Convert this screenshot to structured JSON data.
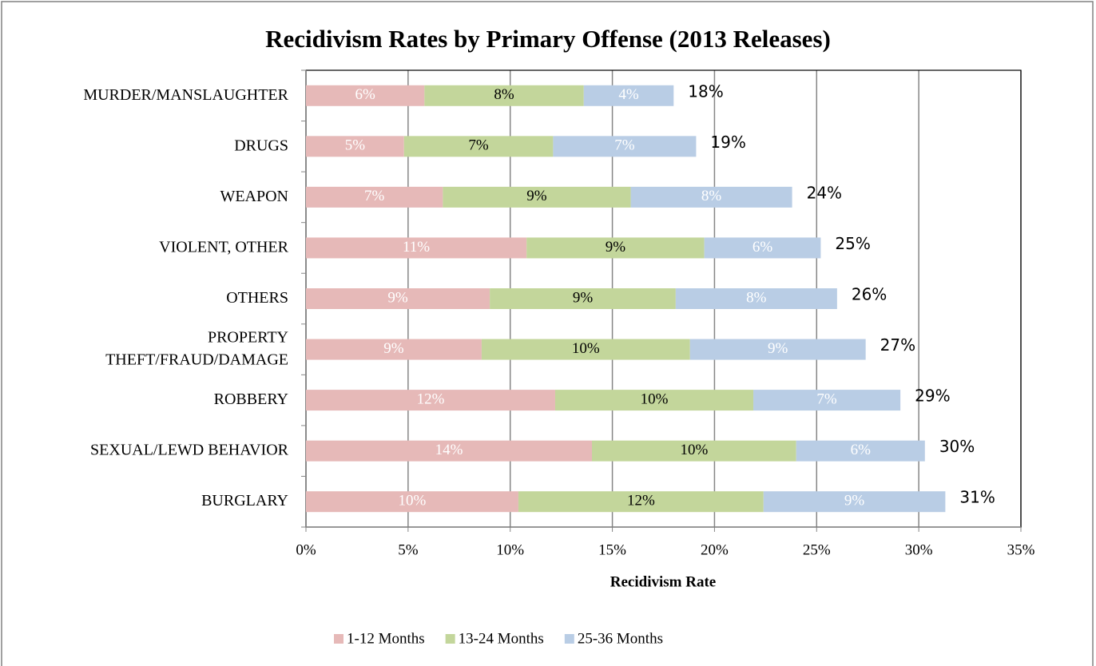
{
  "chart_data": {
    "type": "stacked_barh",
    "title": "Recidivism Rates by Primary Offense (2013 Releases)",
    "x_label": "Recidivism Rate",
    "categories": [
      "MURDER/MANSLAUGHTER",
      "DRUGS",
      "WEAPON",
      "VIOLENT, OTHER",
      "OTHERS",
      "PROPERTY\nTHEFT/FRAUD/DAMAGE",
      "ROBBERY",
      "SEXUAL/LEWD BEHAVIOR",
      "BURGLARY"
    ],
    "series": [
      {
        "name": "1-12 Months",
        "color": "#e6b9b8",
        "label_color": "#ffffff",
        "values": [
          5.8,
          4.8,
          6.7,
          10.8,
          9.0,
          8.6,
          12.2,
          14.0,
          10.4
        ],
        "value_labels": [
          "6%",
          "5%",
          "7%",
          "11%",
          "9%",
          "9%",
          "12%",
          "14%",
          "10%"
        ]
      },
      {
        "name": "13-24 Months",
        "color": "#c3d69b",
        "label_color": "#000000",
        "values": [
          7.8,
          7.3,
          9.2,
          8.7,
          9.1,
          10.2,
          9.7,
          10.0,
          12.0
        ],
        "value_labels": [
          "8%",
          "7%",
          "9%",
          "9%",
          "9%",
          "10%",
          "10%",
          "10%",
          "12%"
        ]
      },
      {
        "name": "25-36 Months",
        "color": "#b9cde5",
        "label_color": "#ffffff",
        "values": [
          4.4,
          7.0,
          7.9,
          5.7,
          7.9,
          8.6,
          7.2,
          6.3,
          8.9
        ],
        "value_labels": [
          "4%",
          "7%",
          "8%",
          "6%",
          "8%",
          "9%",
          "7%",
          "6%",
          "9%"
        ]
      }
    ],
    "totals": [
      18.0,
      19.1,
      23.8,
      25.2,
      26.0,
      27.4,
      29.1,
      30.3,
      31.3
    ],
    "total_labels": [
      "18%",
      "19%",
      "24%",
      "25%",
      "26%",
      "27%",
      "29%",
      "30%",
      "31%"
    ],
    "xlim": [
      0,
      35
    ],
    "xticks": [
      {
        "value": 0,
        "label": "0%"
      },
      {
        "value": 5,
        "label": "5%"
      },
      {
        "value": 10,
        "label": "10%"
      },
      {
        "value": 15,
        "label": "15%"
      },
      {
        "value": 20,
        "label": "20%"
      },
      {
        "value": 25,
        "label": "25%"
      },
      {
        "value": 30,
        "label": "30%"
      },
      {
        "value": 35,
        "label": "35%"
      }
    ],
    "grid": true,
    "legend": "bottom"
  }
}
